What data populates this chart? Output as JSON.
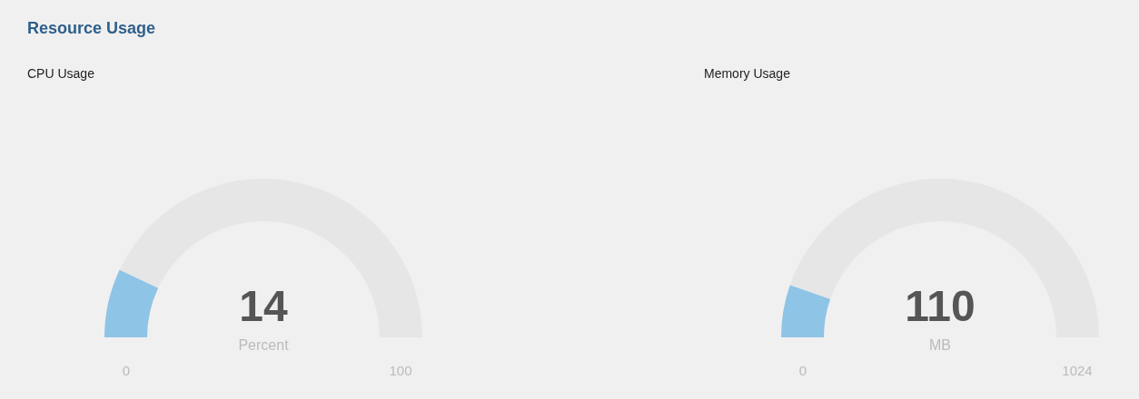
{
  "chart_data": [
    {
      "type": "donut",
      "title": "Resource Usage",
      "subtitle": "CPU Usage",
      "categories": [
        null,
        null
      ],
      "values": [
        14,
        86
      ],
      "colors": [
        "#8ec4e6",
        "#e6e6e6"
      ],
      "annotations": [
        "14",
        "Percent",
        "0",
        "100"
      ]
    },
    {
      "type": "donut",
      "title": "Memory Usage",
      "categories": [
        null,
        null
      ],
      "values": [
        10.7,
        89.3
      ],
      "colors": [
        "#8ec4e6",
        "#e6e6e6"
      ],
      "annotations": [
        "110",
        "MB",
        "0",
        "1024"
      ]
    }
  ]
}
